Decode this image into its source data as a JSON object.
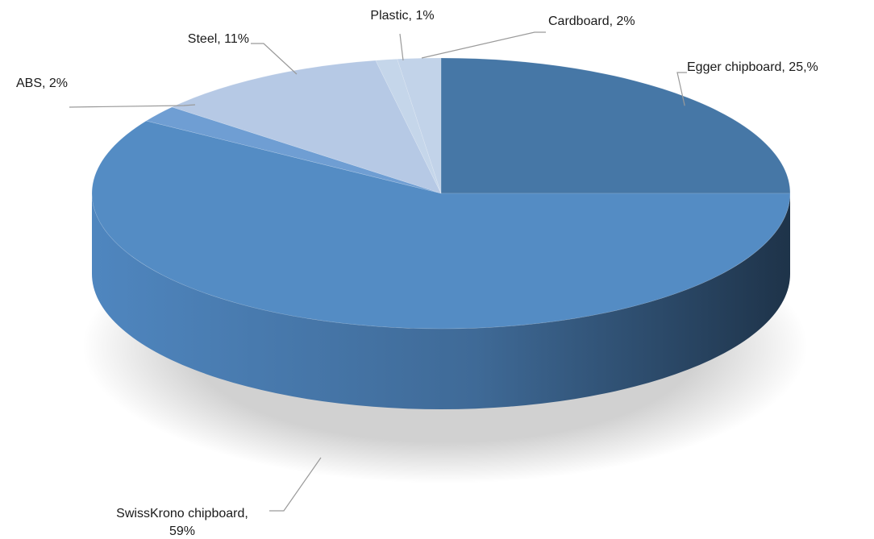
{
  "chart_data": {
    "type": "pie",
    "style": "3d",
    "legend": "none",
    "categories": [
      "Egger chipboard",
      "SwissKrono chipboard",
      "ABS",
      "Steel",
      "Plastic",
      "Cardboard"
    ],
    "values": [
      25,
      59,
      2,
      11,
      1,
      2
    ],
    "data_labels": [
      [
        "Egger chipboard, 25,%"
      ],
      [
        "SwissKrono chipboard,",
        "59%"
      ],
      [
        "ABS, 2%"
      ],
      [
        "Steel, 11%"
      ],
      [
        "Plastic, 1%"
      ],
      [
        "Cardboard, 2%"
      ]
    ],
    "colors": [
      "#4677a6",
      "#548cc4",
      "#6f9ed3",
      "#b6c9e5",
      "#c5d6ea",
      "#c2d3e9"
    ],
    "side_dark": "#1e3349",
    "side_mid": "#3f6a97",
    "side_light": "#4f86bf"
  }
}
